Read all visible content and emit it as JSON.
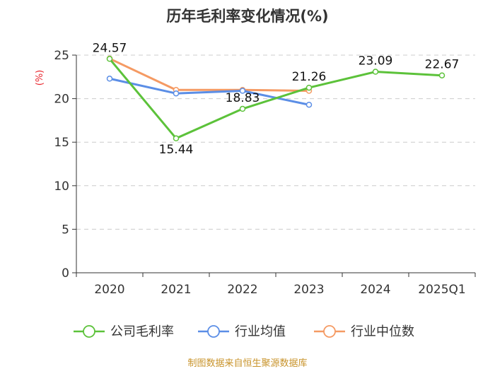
{
  "chart_data": {
    "type": "line",
    "title": "历年毛利率变化情况(%)",
    "ylabel": "(%)",
    "xlabel": "",
    "categories": [
      "2020",
      "2021",
      "2022",
      "2023",
      "2024",
      "2025Q1"
    ],
    "ylim": [
      0,
      25
    ],
    "yticks": [
      0,
      5,
      10,
      15,
      20,
      25
    ],
    "grid": true,
    "legend_position": "bottom",
    "series": [
      {
        "name": "公司毛利率",
        "color": "#5cc23a",
        "values": [
          24.57,
          15.44,
          18.83,
          21.26,
          23.09,
          22.67
        ],
        "show_labels": true
      },
      {
        "name": "行业均值",
        "color": "#5b8ee6",
        "values": [
          22.3,
          20.6,
          20.9,
          19.3,
          null,
          null
        ],
        "show_labels": false
      },
      {
        "name": "行业中位数",
        "color": "#f59a63",
        "values": [
          24.6,
          21.0,
          21.0,
          20.9,
          null,
          null
        ],
        "show_labels": false
      }
    ],
    "data_labels": [
      "24.57",
      "15.44",
      "18.83",
      "21.26",
      "23.09",
      "22.67"
    ],
    "source": "制图数据来自恒生聚源数据库"
  }
}
